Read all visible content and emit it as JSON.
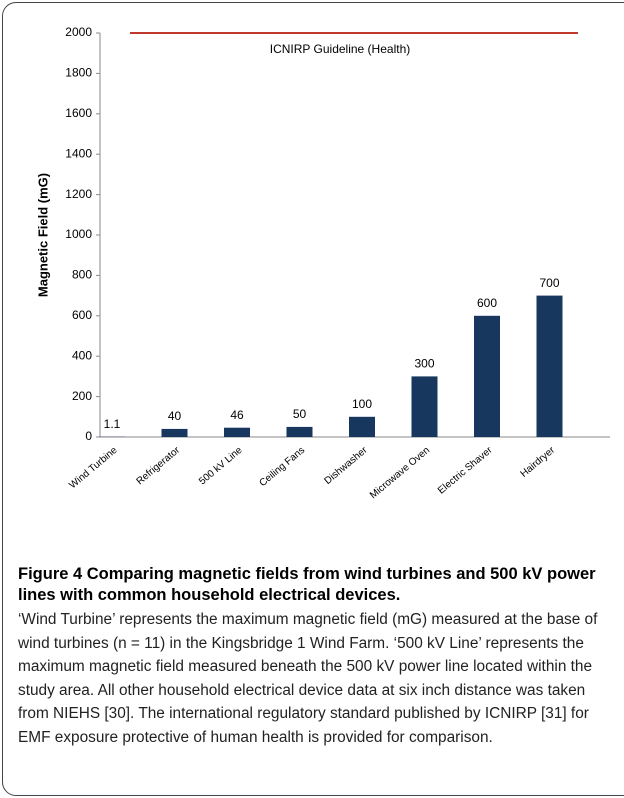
{
  "chart_data": {
    "type": "bar",
    "y_label": "Magnetic Field (mG)",
    "categories": [
      "Wind Turbine",
      "Refrigerator",
      "500 kV Line",
      "Ceiling Fans",
      "Dishwasher",
      "Microwave Oven",
      "Electric Shaver",
      "Hairdryer"
    ],
    "values": [
      1.1,
      40,
      46,
      50,
      100,
      300,
      600,
      700
    ],
    "color": "#17375e",
    "ylim": [
      0,
      2000
    ],
    "yticks": [
      0,
      200,
      400,
      600,
      800,
      1000,
      1200,
      1400,
      1600,
      1800,
      2000
    ],
    "reference_line": {
      "value": 2000,
      "label": "ICNIRP Guideline (Health)",
      "color": "#c0392b"
    }
  },
  "caption": {
    "title": "Figure 4 Comparing magnetic fields from wind turbines and 500 kV power lines with common household electrical devices.",
    "text": "‘Wind Turbine’ represents the maximum magnetic field (mG) measured at the base of wind turbines (n = 11) in the Kingsbridge 1 Wind Farm. ‘500 kV Line’ represents the maximum magnetic field measured beneath the 500 kV power line located within the study area. All other household electrical device data at six inch distance was taken from NIEHS [30]. The international regulatory standard published by ICNIRP [31] for EMF exposure protective of human health is provided for comparison."
  }
}
